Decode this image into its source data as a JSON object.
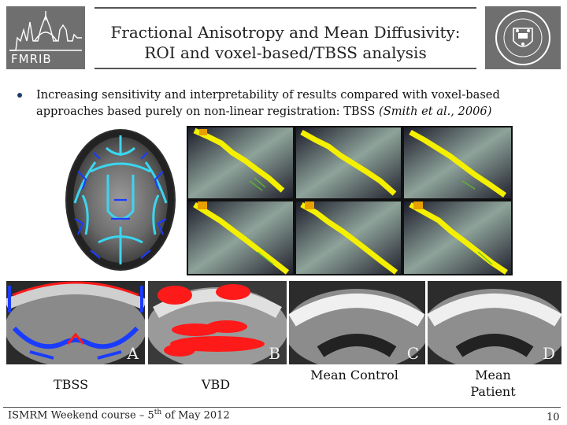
{
  "header": {
    "title_line1": "Fractional Anisotropy and Mean Diffusivity:",
    "title_line2": "ROI and voxel-based/TBSS analysis",
    "logo_left_text": "FMRIB",
    "logo_right_text": "DOMINUS ILLUMINATIO MEA"
  },
  "bullet": {
    "text": "Increasing sensitivity and interpretability of results compared with voxel-based approaches based purely on non-linear registration: TBSS",
    "citation": "(Smith et al., 2006)"
  },
  "panels": [
    {
      "letter": "A",
      "caption": "TBSS"
    },
    {
      "letter": "B",
      "caption": "VBD"
    },
    {
      "letter": "C",
      "caption": "Mean Control"
    },
    {
      "letter": "D",
      "caption_line1": "Mean",
      "caption_line2": "Patient"
    }
  ],
  "footer": {
    "course_prefix": "ISMRM Weekend course – 5",
    "course_sup": "th",
    "course_suffix": " of May 2012",
    "page_number": "10"
  },
  "colors": {
    "rule": "#555555",
    "skeleton_yellow": "#f4f000",
    "tbss_blue": "#1a3cff",
    "vbd_red": "#ff1a1a",
    "fa_skeleton_cyan": "#3ad6f0"
  }
}
